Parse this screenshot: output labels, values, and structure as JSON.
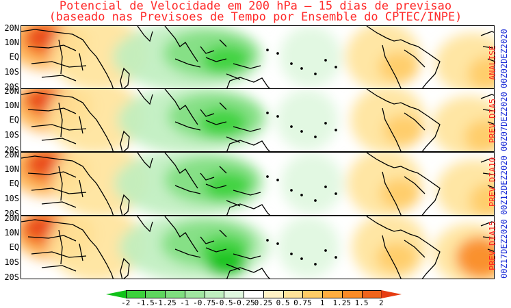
{
  "title": {
    "line1": "Potencial de Velocidade em 200 hPa — 15 dias de previsao",
    "line2": "(baseado nas Previsoes de Tempo por Ensemble do CPTEC/INPE)"
  },
  "lat_labels": [
    "20N",
    "10N",
    "EQ",
    "10S",
    "20S"
  ],
  "panels": [
    {
      "label": "ANALISE",
      "date": "00Z02DEZ2020"
    },
    {
      "label": "PREV DIA5",
      "date": "00Z07DEZ2020"
    },
    {
      "label": "PREV DIA10",
      "date": "00Z12DEZ2020"
    },
    {
      "label": "PREV DIA15",
      "date": "00Z17DEZ2020"
    }
  ],
  "colorbar": {
    "ticks": [
      "-2",
      "-1.5",
      "-1.25",
      "-1",
      "-0.75",
      "-0.5",
      "-0.25",
      "0.25",
      "0.5",
      "0.75",
      "1",
      "1.25",
      "1.5",
      "2"
    ],
    "colors": [
      "#11c11a",
      "#3cd13c",
      "#5ed65e",
      "#7fdf7f",
      "#a0e6a0",
      "#bfeebf",
      "#dff7df",
      "#ffffff",
      "#fff2c6",
      "#ffe39a",
      "#ffcc66",
      "#ffad3f",
      "#fa8b27",
      "#f0641c",
      "#e63c12"
    ]
  }
}
